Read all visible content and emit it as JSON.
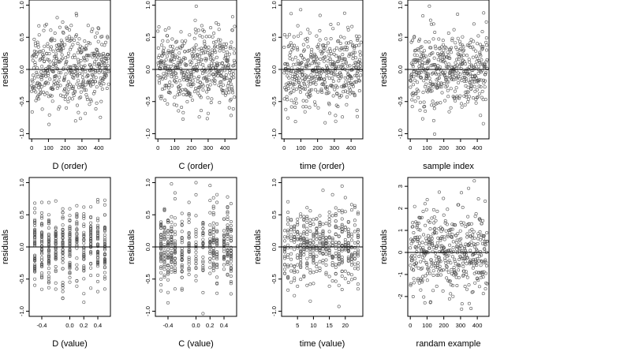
{
  "figure": {
    "background": "#ffffff",
    "point_color": "#555555",
    "line_color": "#000000"
  },
  "chart_data": [
    {
      "type": "scatter",
      "xlabel": "D (order)",
      "ylabel": "residuals",
      "xlim": [
        -15,
        470
      ],
      "ylim": [
        -1.08,
        1.08
      ],
      "xticks": [
        0,
        100,
        200,
        300,
        400
      ],
      "xtick_labels": [
        "0",
        "100",
        "200",
        "300",
        "400"
      ],
      "yticks": [
        -1.0,
        -0.5,
        0.0,
        0.5,
        1.0
      ],
      "ytick_labels": [
        "-1.0",
        "-0.5",
        "0.0",
        "0.5",
        "1.0"
      ],
      "hline": 0,
      "n_points": 460,
      "x_kind": "order",
      "y_sd": 0.3,
      "seed": 11
    },
    {
      "type": "scatter",
      "xlabel": "C (order)",
      "ylabel": "residuals",
      "xlim": [
        -15,
        470
      ],
      "ylim": [
        -1.08,
        1.08
      ],
      "xticks": [
        0,
        100,
        200,
        300,
        400
      ],
      "xtick_labels": [
        "0",
        "100",
        "200",
        "300",
        "400"
      ],
      "yticks": [
        -1.0,
        -0.5,
        0.0,
        0.5,
        1.0
      ],
      "ytick_labels": [
        "-1.0",
        "-0.5",
        "0.0",
        "0.5",
        "1.0"
      ],
      "hline": 0,
      "n_points": 460,
      "x_kind": "order",
      "y_sd": 0.3,
      "seed": 23
    },
    {
      "type": "scatter",
      "xlabel": "time (order)",
      "ylabel": "residuals",
      "xlim": [
        -15,
        470
      ],
      "ylim": [
        -1.08,
        1.08
      ],
      "xticks": [
        0,
        100,
        200,
        300,
        400
      ],
      "xtick_labels": [
        "0",
        "100",
        "200",
        "300",
        "400"
      ],
      "yticks": [
        -1.0,
        -0.5,
        0.0,
        0.5,
        1.0
      ],
      "ytick_labels": [
        "-1.0",
        "-0.5",
        "0.0",
        "0.5",
        "1.0"
      ],
      "hline": 0,
      "n_points": 460,
      "x_kind": "order",
      "y_sd": 0.3,
      "seed": 37
    },
    {
      "type": "scatter",
      "xlabel": "sample index",
      "ylabel": "residuals",
      "xlim": [
        -15,
        470
      ],
      "ylim": [
        -1.08,
        1.08
      ],
      "xticks": [
        0,
        100,
        200,
        300,
        400
      ],
      "xtick_labels": [
        "0",
        "100",
        "200",
        "300",
        "400"
      ],
      "yticks": [
        -1.0,
        -0.5,
        0.0,
        0.5,
        1.0
      ],
      "ytick_labels": [
        "-1.0",
        "-0.5",
        "0.0",
        "0.5",
        "1.0"
      ],
      "hline": 0,
      "n_points": 460,
      "x_kind": "order",
      "y_sd": 0.3,
      "seed": 41
    },
    {
      "type": "scatter",
      "xlabel": "D (value)",
      "ylabel": "residuals",
      "xlim": [
        -0.58,
        0.58
      ],
      "ylim": [
        -1.08,
        1.08
      ],
      "xticks": [
        -0.4,
        0.0,
        0.2,
        0.4
      ],
      "xtick_labels": [
        "-0.4",
        "0.0",
        "0.2",
        "0.4"
      ],
      "yticks": [
        -1.0,
        -0.5,
        0.0,
        0.5,
        1.0
      ],
      "ytick_labels": [
        "-1.0",
        "-0.5",
        "0.0",
        "0.5",
        "1.0"
      ],
      "hline": 0,
      "n_points": 460,
      "x_kind": "values",
      "x_levels": [
        -0.5,
        -0.4,
        -0.3,
        -0.2,
        -0.1,
        0.0,
        0.1,
        0.2,
        0.3,
        0.4,
        0.5
      ],
      "y_sd": 0.3,
      "seed": 53
    },
    {
      "type": "scatter",
      "xlabel": "C (value)",
      "ylabel": "residuals",
      "xlim": [
        -0.58,
        0.58
      ],
      "ylim": [
        -1.08,
        1.08
      ],
      "xticks": [
        -0.4,
        0.0,
        0.2,
        0.4
      ],
      "xtick_labels": [
        "-0.4",
        "0.0",
        "0.2",
        "0.4"
      ],
      "yticks": [
        -1.0,
        -0.5,
        0.0,
        0.5,
        1.0
      ],
      "ytick_labels": [
        "-1.0",
        "-0.5",
        "0.0",
        "0.5",
        "1.0"
      ],
      "hline": 0,
      "n_points": 460,
      "x_kind": "values",
      "x_levels": [
        -0.5,
        -0.45,
        -0.4,
        -0.35,
        -0.3,
        -0.2,
        -0.1,
        0.0,
        0.1,
        0.2,
        0.25,
        0.3,
        0.4,
        0.45,
        0.5
      ],
      "y_sd": 0.3,
      "seed": 67
    },
    {
      "type": "scatter",
      "xlabel": "time (value)",
      "ylabel": "residuals",
      "xlim": [
        0,
        25.5
      ],
      "ylim": [
        -1.08,
        1.08
      ],
      "xticks": [
        5,
        10,
        15,
        20
      ],
      "xtick_labels": [
        "5",
        "10",
        "15",
        "20"
      ],
      "yticks": [
        -1.0,
        -0.5,
        0.0,
        0.5,
        1.0
      ],
      "ytick_labels": [
        "-1.0",
        "-0.5",
        "0.0",
        "0.5",
        "1.0"
      ],
      "hline": 0,
      "n_points": 460,
      "x_kind": "values",
      "x_levels": [
        1,
        2,
        3,
        4,
        5,
        6,
        7,
        8,
        9,
        10,
        11,
        12,
        13,
        14,
        15,
        16,
        17,
        18,
        19,
        20,
        21,
        22,
        23,
        24
      ],
      "y_sd": 0.3,
      "seed": 79
    },
    {
      "type": "scatter",
      "xlabel": "randam example",
      "ylabel": "residuals",
      "xlim": [
        -15,
        470
      ],
      "ylim": [
        -2.9,
        3.4
      ],
      "xticks": [
        0,
        100,
        200,
        300,
        400
      ],
      "xtick_labels": [
        "0",
        "100",
        "200",
        "300",
        "400"
      ],
      "yticks": [
        -2,
        -1,
        0,
        1,
        2,
        3
      ],
      "ytick_labels": [
        "-2",
        "-1",
        "0",
        "1",
        "2",
        "3"
      ],
      "hline": 0,
      "n_points": 460,
      "x_kind": "order",
      "y_sd": 1.0,
      "seed": 97
    }
  ]
}
